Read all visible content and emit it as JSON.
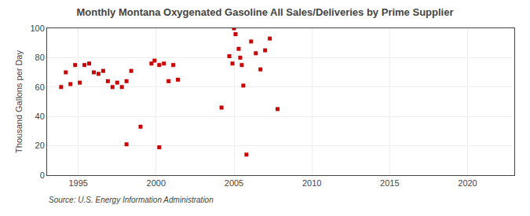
{
  "chart_data": {
    "type": "scatter",
    "title": "Monthly Montana Oxygenated Gasoline All Sales/Deliveries by Prime Supplier",
    "ylabel": "Thousand Gallons per Day",
    "annotations": [
      "Source: U.S. Energy Information Administration"
    ],
    "color": "#cc0000",
    "marker": "square",
    "grid": true,
    "xlim": [
      1993.0,
      2023.0
    ],
    "ylim": [
      0,
      100
    ],
    "xticks": [
      1995,
      2000,
      2005,
      2010,
      2015,
      2020
    ],
    "yticks": [
      0,
      20,
      40,
      60,
      80,
      100
    ],
    "x": [
      1993.9,
      1994.2,
      1994.5,
      1994.8,
      1995.1,
      1995.4,
      1995.7,
      1996.0,
      1996.3,
      1996.6,
      1996.9,
      1997.2,
      1997.5,
      1997.8,
      1998.1,
      1998.4,
      1998.1,
      1999.0,
      1999.7,
      1999.9,
      2000.2,
      2000.5,
      2000.8,
      2001.1,
      2001.4,
      2000.2,
      2004.2,
      2004.7,
      2004.9,
      2005.0,
      2005.1,
      2005.3,
      2005.4,
      2005.5,
      2005.6,
      2005.8,
      2006.1,
      2006.4,
      2006.7,
      2007.0,
      2007.3,
      2007.8
    ],
    "values": [
      60,
      70,
      62,
      75,
      63,
      75,
      76,
      70,
      69,
      71,
      64,
      60,
      63,
      60,
      64,
      71,
      21,
      33,
      76,
      78,
      75,
      76,
      64,
      75,
      65,
      19,
      46,
      81,
      76,
      100,
      96,
      86,
      80,
      75,
      61,
      14,
      91,
      83,
      72,
      85,
      93,
      45
    ]
  }
}
